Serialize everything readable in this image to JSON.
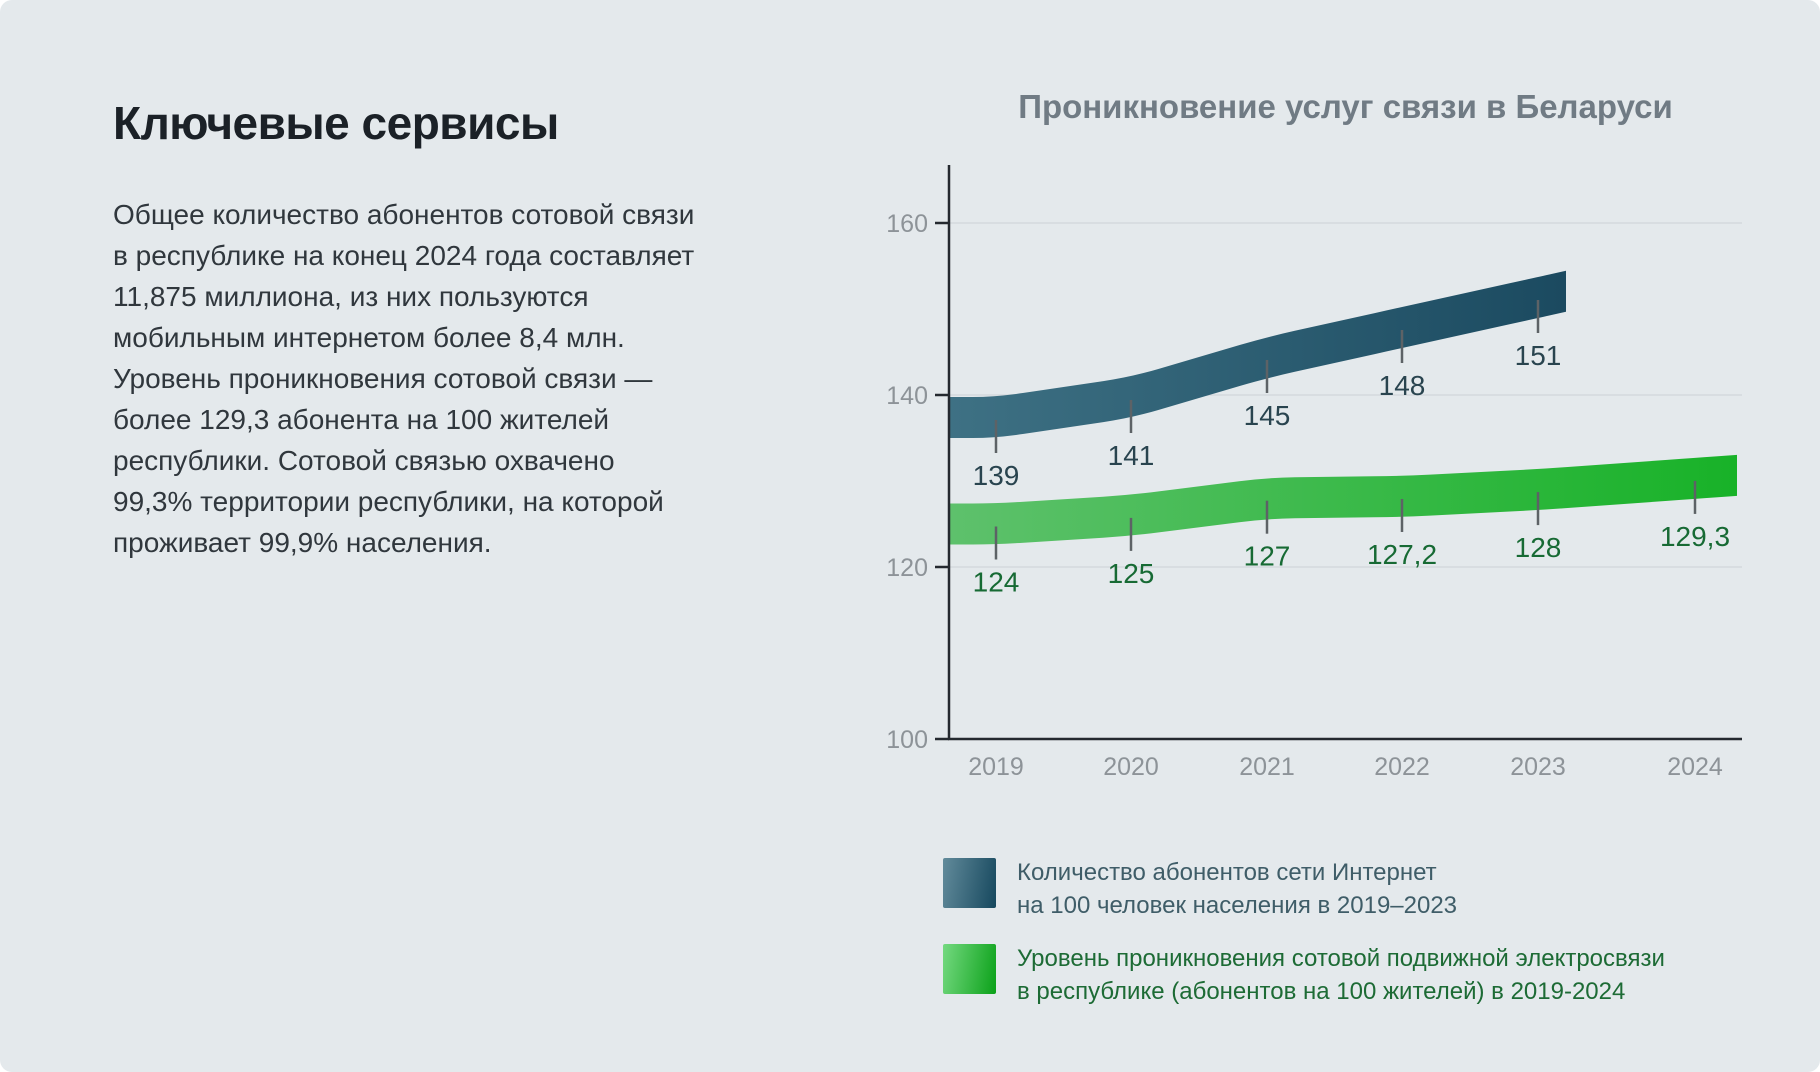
{
  "page": {
    "background": "#e4e9ec"
  },
  "left_panel": {
    "heading": "Ключевые сервисы",
    "paragraph_lines": [
      "Общее количество абонентов сотовой связи",
      "в республике на конец 2024 года составляет",
      "11,875 миллиона, из них пользуются",
      "мобильным интернетом более 8,4 млн.",
      "Уровень проникновения сотовой связи —",
      "более 129,3 абонента на 100 жителей",
      "республики. Сотовой связью охвачено",
      "99,3% территории республики, на которой",
      "проживает 99,9% населения."
    ]
  },
  "chart": {
    "title": "Проникновение услуг связи в Беларуси",
    "y_ticks": [
      "160",
      "140",
      "120",
      "100"
    ],
    "x_ticks": [
      "2019",
      "2020",
      "2021",
      "2022",
      "2023",
      "2024"
    ]
  },
  "chart_data": {
    "type": "area",
    "title": "Проникновение услуг связи в Беларуси",
    "categories": [
      2019,
      2020,
      2021,
      2022,
      2023,
      2024
    ],
    "ylim": [
      100,
      160
    ],
    "y_tick_step": 20,
    "grid": true,
    "legend_position": "bottom",
    "series": [
      {
        "name": "Количество абонентов сети Интернет на 100 человек населения в 2019–2023",
        "values": [
          139,
          141,
          145,
          148,
          151
        ],
        "labels": [
          "139",
          "141",
          "145",
          "148",
          "151"
        ],
        "color_start": "#3e7184",
        "color_end": "#1b4a60",
        "legend_gradient": [
          "#628b9b",
          "#16485e"
        ],
        "label_color": "#29444f"
      },
      {
        "name": "Уровень проникновения сотовой подвижной электросвязи в республике (абонентов на 100 жителей) в 2019-2024",
        "values": [
          124,
          125,
          127,
          127.2,
          128,
          129.3
        ],
        "labels": [
          "124",
          "125",
          "127",
          "127,2",
          "128",
          "129,3"
        ],
        "color_start": "#5ec16c",
        "color_end": "#18b228",
        "legend_gradient": [
          "#74d980",
          "#0ba119"
        ],
        "label_color": "#176a34"
      }
    ]
  },
  "legend": {
    "items": [
      {
        "line1": "Количество абонентов сети Интернет",
        "line2": "на 100 человек населения в 2019–2023"
      },
      {
        "line1": "Уровень проникновения сотовой подвижной электросвязи",
        "line2": "в республике (абонентов на 100 жителей) в 2019-2024"
      }
    ]
  }
}
